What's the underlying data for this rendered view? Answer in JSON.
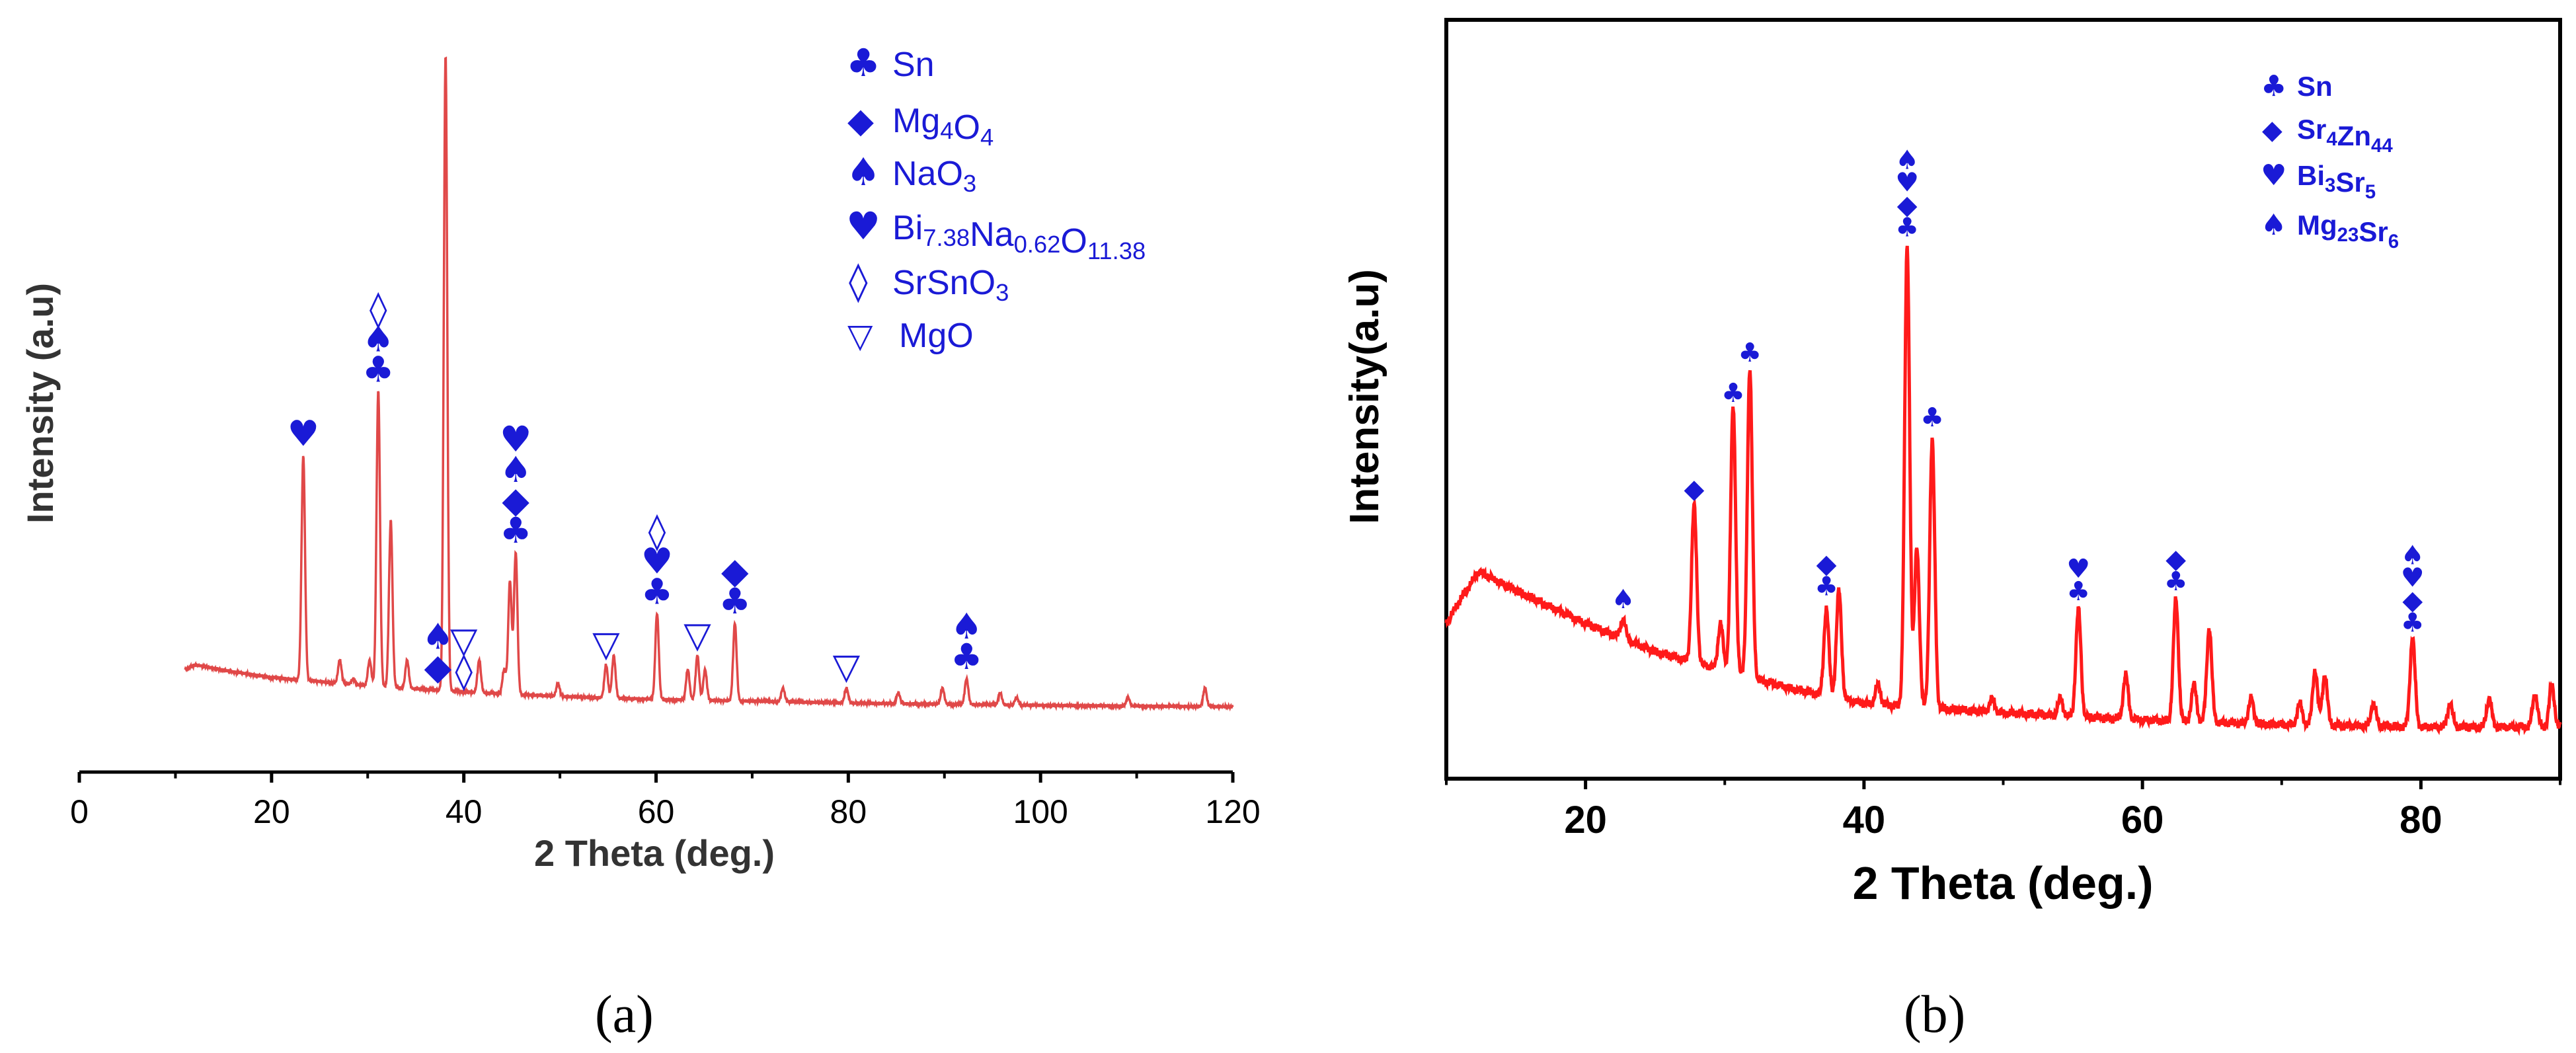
{
  "chart_data": [
    {
      "id": "a",
      "type": "line",
      "caption": "(a)",
      "xlabel": "2 Theta (deg.)",
      "ylabel": "Intensity (a.u)",
      "xlim": [
        0,
        120
      ],
      "ylim": [
        0,
        100
      ],
      "xticks": [
        "0",
        "20",
        "40",
        "60",
        "80",
        "100",
        "120"
      ],
      "xtick_values": [
        0,
        20,
        40,
        60,
        80,
        100,
        120
      ],
      "line_color": "#e04848",
      "x_range": [
        11,
        120
      ],
      "baseline": [
        [
          11,
          22
        ],
        [
          12,
          23
        ],
        [
          16,
          21.5
        ],
        [
          20,
          20.3
        ],
        [
          30,
          18.5
        ],
        [
          40,
          17.2
        ],
        [
          50,
          16.2
        ],
        [
          60,
          15.6
        ],
        [
          80,
          14.8
        ],
        [
          100,
          14.3
        ],
        [
          120,
          14
        ]
      ],
      "peaks": [
        {
          "x": 23.3,
          "y": 68
        },
        {
          "x": 27.1,
          "y": 24
        },
        {
          "x": 28.5,
          "y": 20
        },
        {
          "x": 30.2,
          "y": 24
        },
        {
          "x": 31.1,
          "y": 82
        },
        {
          "x": 32.4,
          "y": 54
        },
        {
          "x": 34.1,
          "y": 24
        },
        {
          "x": 38.1,
          "y": 154
        },
        {
          "x": 41.6,
          "y": 24
        },
        {
          "x": 44.2,
          "y": 22
        },
        {
          "x": 44.8,
          "y": 41
        },
        {
          "x": 45.4,
          "y": 47
        },
        {
          "x": 49.8,
          "y": 19
        },
        {
          "x": 54.8,
          "y": 23
        },
        {
          "x": 55.6,
          "y": 25
        },
        {
          "x": 60.1,
          "y": 34
        },
        {
          "x": 63.3,
          "y": 22
        },
        {
          "x": 64.3,
          "y": 25
        },
        {
          "x": 65.1,
          "y": 22
        },
        {
          "x": 68.2,
          "y": 32
        },
        {
          "x": 73.2,
          "y": 18
        },
        {
          "x": 79.8,
          "y": 18
        },
        {
          "x": 85.2,
          "y": 17
        },
        {
          "x": 89.8,
          "y": 18
        },
        {
          "x": 92.3,
          "y": 20
        },
        {
          "x": 95.8,
          "y": 17
        },
        {
          "x": 97.5,
          "y": 16
        },
        {
          "x": 109.1,
          "y": 16
        },
        {
          "x": 117.1,
          "y": 18
        }
      ],
      "annotations": [
        {
          "x": 23.3,
          "symbols": [
            "heart"
          ]
        },
        {
          "x": 31.1,
          "symbols": [
            "club",
            "spade",
            "open-diamond"
          ]
        },
        {
          "x": 37.3,
          "symbols": [
            "diamond",
            "spade"
          ]
        },
        {
          "x": 40.0,
          "symbols": [
            "open-diamond",
            "triangle"
          ]
        },
        {
          "x": 45.4,
          "symbols": [
            "club",
            "diamond",
            "spade",
            "heart"
          ]
        },
        {
          "x": 54.8,
          "symbols": [
            "triangle"
          ]
        },
        {
          "x": 60.1,
          "symbols": [
            "club",
            "heart",
            "open-diamond"
          ]
        },
        {
          "x": 64.3,
          "symbols": [
            "triangle"
          ]
        },
        {
          "x": 68.2,
          "symbols": [
            "club",
            "diamond"
          ]
        },
        {
          "x": 79.8,
          "symbols": [
            "triangle"
          ]
        },
        {
          "x": 92.3,
          "symbols": [
            "club",
            "spade"
          ]
        }
      ],
      "legend_position": "top-right",
      "legend": [
        {
          "symbol": "club",
          "label": "Sn"
        },
        {
          "symbol": "diamond",
          "label": "Mg4O4"
        },
        {
          "symbol": "spade",
          "label": "NaO3"
        },
        {
          "symbol": "heart",
          "label": "Bi7.38Na0.62O11.38"
        },
        {
          "symbol": "open-diamond",
          "label": "SrSnO3"
        },
        {
          "symbol": "triangle",
          "label": "MgO"
        }
      ]
    },
    {
      "id": "b",
      "type": "line",
      "caption": "(b)",
      "xlabel": "2 Theta (deg.)",
      "ylabel": "Intensity(a.u)",
      "xlim": [
        10,
        90
      ],
      "ylim": [
        0,
        100
      ],
      "xticks": [
        "20",
        "40",
        "60",
        "80"
      ],
      "xtick_values": [
        20,
        40,
        60,
        80
      ],
      "line_color": "#ff1a1a",
      "x_range": [
        10,
        90
      ],
      "baseline": [
        [
          10,
          33
        ],
        [
          11,
          38
        ],
        [
          12.3,
          44
        ],
        [
          13,
          43
        ],
        [
          15,
          40
        ],
        [
          20,
          33
        ],
        [
          25,
          27
        ],
        [
          30,
          23
        ],
        [
          35,
          19
        ],
        [
          40,
          16
        ],
        [
          50,
          14
        ],
        [
          60,
          12.5
        ],
        [
          70,
          11.5
        ],
        [
          80,
          11
        ],
        [
          90,
          11
        ]
      ],
      "peaks": [
        {
          "x": 22.7,
          "y": 34
        },
        {
          "x": 27.8,
          "y": 58
        },
        {
          "x": 29.7,
          "y": 33
        },
        {
          "x": 30.6,
          "y": 79
        },
        {
          "x": 31.8,
          "y": 87
        },
        {
          "x": 37.3,
          "y": 36
        },
        {
          "x": 38.2,
          "y": 40
        },
        {
          "x": 41.0,
          "y": 20
        },
        {
          "x": 43.1,
          "y": 113
        },
        {
          "x": 43.8,
          "y": 49
        },
        {
          "x": 44.9,
          "y": 72
        },
        {
          "x": 49.2,
          "y": 17
        },
        {
          "x": 54.1,
          "y": 17
        },
        {
          "x": 55.4,
          "y": 36
        },
        {
          "x": 58.8,
          "y": 22
        },
        {
          "x": 62.4,
          "y": 38
        },
        {
          "x": 63.7,
          "y": 20
        },
        {
          "x": 64.8,
          "y": 32
        },
        {
          "x": 67.8,
          "y": 17
        },
        {
          "x": 71.3,
          "y": 16
        },
        {
          "x": 72.4,
          "y": 23
        },
        {
          "x": 73.1,
          "y": 22
        },
        {
          "x": 76.6,
          "y": 16
        },
        {
          "x": 79.4,
          "y": 30
        },
        {
          "x": 82.1,
          "y": 16
        },
        {
          "x": 84.9,
          "y": 17
        },
        {
          "x": 88.2,
          "y": 18
        },
        {
          "x": 89.4,
          "y": 20
        }
      ],
      "annotations": [
        {
          "x": 22.7,
          "symbols": [
            "spade"
          ]
        },
        {
          "x": 27.8,
          "symbols": [
            "diamond"
          ]
        },
        {
          "x": 30.6,
          "symbols": [
            "club"
          ]
        },
        {
          "x": 31.8,
          "symbols": [
            "club"
          ]
        },
        {
          "x": 37.3,
          "symbols": [
            "club",
            "diamond"
          ]
        },
        {
          "x": 43.1,
          "symbols": [
            "club",
            "diamond",
            "heart",
            "spade"
          ]
        },
        {
          "x": 44.9,
          "symbols": [
            "club"
          ]
        },
        {
          "x": 55.4,
          "symbols": [
            "club",
            "heart"
          ]
        },
        {
          "x": 62.4,
          "symbols": [
            "club",
            "diamond"
          ]
        },
        {
          "x": 79.4,
          "symbols": [
            "club",
            "diamond",
            "heart",
            "spade"
          ]
        }
      ],
      "legend_position": "top-right",
      "legend": [
        {
          "symbol": "club",
          "label": "Sn"
        },
        {
          "symbol": "diamond",
          "label": "Sr4Zn44"
        },
        {
          "symbol": "heart",
          "label": "Bi3Sr5"
        },
        {
          "symbol": "spade",
          "label": "Mg23Sr6"
        }
      ]
    }
  ],
  "symbols": {
    "club": "♣",
    "diamond": "◆",
    "spade": "♠",
    "heart": "♥",
    "open-diamond": "◊",
    "triangle": "▽"
  },
  "colors": {
    "symbol": "#1a1ad6",
    "axis": "#000000",
    "label": "#333333"
  }
}
